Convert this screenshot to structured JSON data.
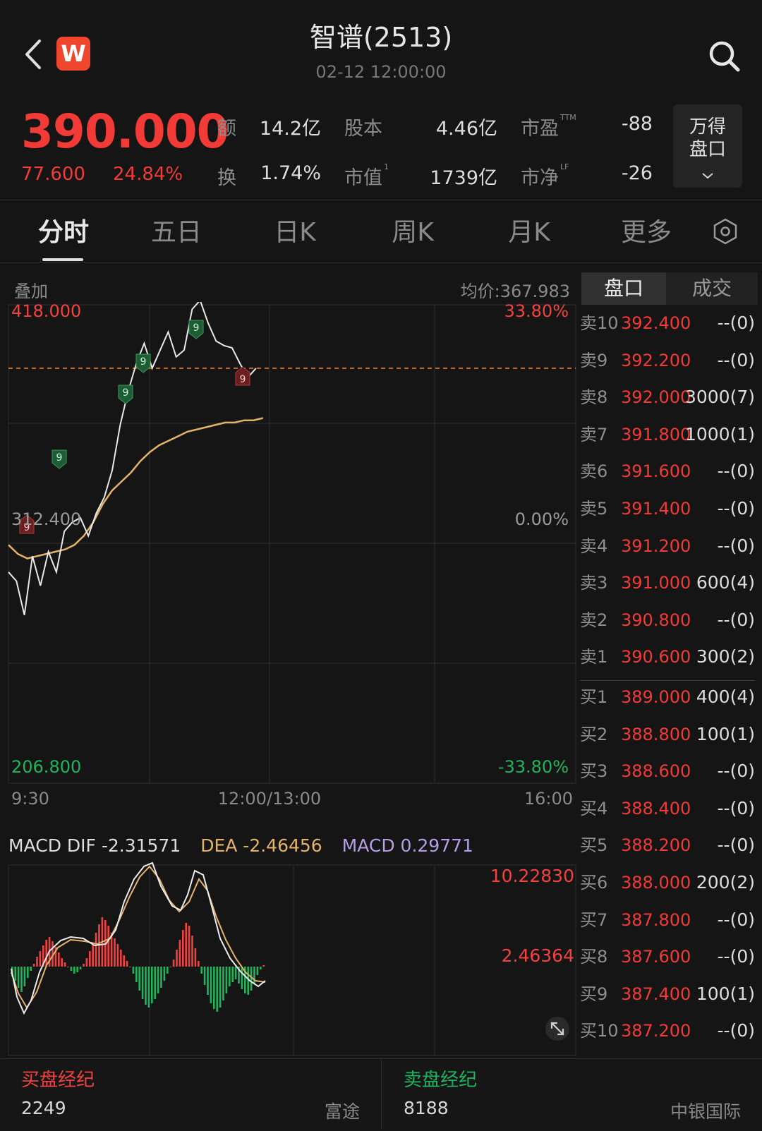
{
  "header": {
    "title": "智谱(2513)",
    "timestamp": "02-12 12:00:00",
    "logo_letter": "W"
  },
  "quote": {
    "price": "390.000",
    "change": "77.600",
    "change_pct": "24.84%",
    "stats": [
      {
        "label": "额",
        "value": "14.2亿"
      },
      {
        "label": "股本",
        "value": "4.46亿"
      },
      {
        "label": "市盈",
        "sup": "TTM",
        "value": "-88"
      },
      {
        "label": "换",
        "value": "1.74%"
      },
      {
        "label": "市值",
        "sup": "1",
        "value": "1739亿"
      },
      {
        "label": "市净",
        "sup": "LF",
        "value": "-26"
      }
    ],
    "button_line1": "万得",
    "button_line2": "盘口"
  },
  "tabs": [
    "分时",
    "五日",
    "日K",
    "周K",
    "月K",
    "更多"
  ],
  "chart": {
    "overlay_label": "叠加",
    "avg_price_label": "均价:367.983",
    "y_high": "418.000",
    "y_high_pct": "33.80%",
    "y_mid": "312.400",
    "y_mid_pct": "0.00%",
    "y_low": "206.800",
    "y_low_pct": "-33.80%",
    "time_start": "9:30",
    "time_mid": "12:00/13:00",
    "time_end": "16:00",
    "signal_labels": [
      "9",
      "9",
      "9",
      "9",
      "9",
      "9",
      "9"
    ],
    "macd_dif": "MACD DIF -2.31571",
    "macd_dea": "DEA -2.46456",
    "macd_value": "MACD 0.29771",
    "macd_high": "10.22830",
    "macd_mid": "2.46364",
    "colors": {
      "up": "#f2423f",
      "down": "#1fb35e",
      "price_line": "#e8e8e8",
      "avg_line": "#e4b36a",
      "dea": "#e4b36a",
      "macd": "#b49ee6"
    }
  },
  "chart_data": {
    "type": "line",
    "x_range": [
      "9:30",
      "16:00"
    ],
    "ylim": [
      206.8,
      418.0
    ],
    "reference_price": 312.4,
    "last_price": 390.0,
    "series": [
      {
        "values": [
          300,
          296,
          281,
          307,
          294,
          309,
          300,
          318,
          322,
          324,
          316,
          326,
          333,
          345,
          365,
          380,
          392,
          401,
          390,
          398,
          406,
          395,
          398,
          416,
          420,
          410,
          402,
          400,
          399,
          392,
          386,
          390
        ]
      },
      {
        "values": [
          312,
          308,
          306,
          307,
          308,
          309,
          310,
          312,
          316,
          322,
          330,
          336,
          340,
          344,
          349,
          353,
          356,
          358,
          360,
          362,
          363,
          364,
          365,
          366,
          366,
          367,
          367,
          368
        ]
      }
    ]
  },
  "order_book": {
    "tab_active": "盘口",
    "tab_other": "成交",
    "asks": [
      {
        "label": "卖10",
        "price": "392.400",
        "vol": "--(0)"
      },
      {
        "label": "卖9",
        "price": "392.200",
        "vol": "--(0)"
      },
      {
        "label": "卖8",
        "price": "392.000",
        "vol": "3000(7)"
      },
      {
        "label": "卖7",
        "price": "391.800",
        "vol": "1000(1)"
      },
      {
        "label": "卖6",
        "price": "391.600",
        "vol": "--(0)"
      },
      {
        "label": "卖5",
        "price": "391.400",
        "vol": "--(0)"
      },
      {
        "label": "卖4",
        "price": "391.200",
        "vol": "--(0)"
      },
      {
        "label": "卖3",
        "price": "391.000",
        "vol": "600(4)"
      },
      {
        "label": "卖2",
        "price": "390.800",
        "vol": "--(0)"
      },
      {
        "label": "卖1",
        "price": "390.600",
        "vol": "300(2)"
      }
    ],
    "bids": [
      {
        "label": "买1",
        "price": "389.000",
        "vol": "400(4)"
      },
      {
        "label": "买2",
        "price": "388.800",
        "vol": "100(1)"
      },
      {
        "label": "买3",
        "price": "388.600",
        "vol": "--(0)"
      },
      {
        "label": "买4",
        "price": "388.400",
        "vol": "--(0)"
      },
      {
        "label": "买5",
        "price": "388.200",
        "vol": "--(0)"
      },
      {
        "label": "买6",
        "price": "388.000",
        "vol": "200(2)"
      },
      {
        "label": "买7",
        "price": "387.800",
        "vol": "--(0)"
      },
      {
        "label": "买8",
        "price": "387.600",
        "vol": "--(0)"
      },
      {
        "label": "买9",
        "price": "387.400",
        "vol": "100(1)"
      },
      {
        "label": "买10",
        "price": "387.200",
        "vol": "--(0)"
      }
    ]
  },
  "brokers": {
    "buy_title": "买盘经纪",
    "buy_code": "2249",
    "buy_name": "富途",
    "sell_title": "卖盘经纪",
    "sell_code": "8188",
    "sell_name": "中银国际"
  }
}
